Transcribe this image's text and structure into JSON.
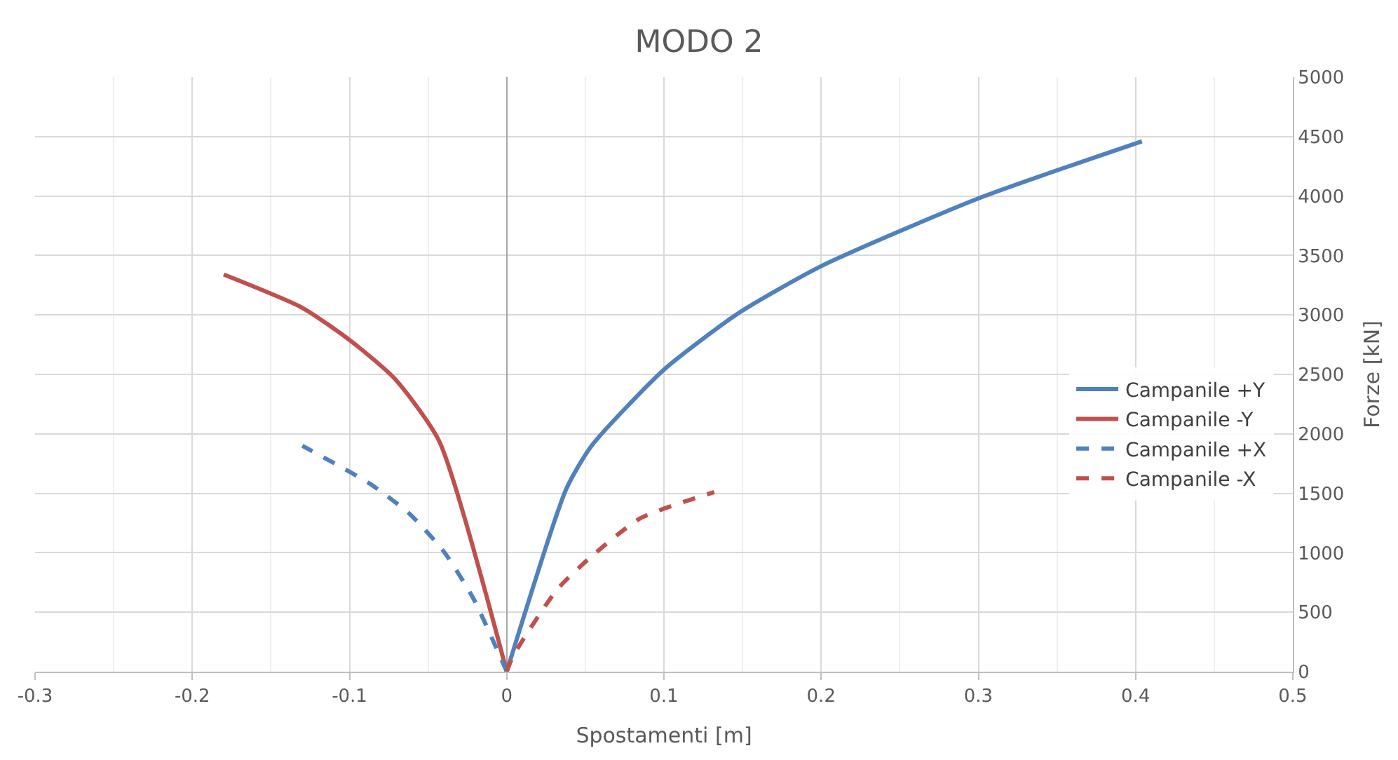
{
  "chart_data": {
    "type": "line",
    "title": "MODO 2",
    "xlabel": "Spostamenti [m]",
    "ylabel": "Forze [kN]",
    "xlim": [
      -0.3,
      0.5
    ],
    "xticks": [
      -0.3,
      -0.2,
      -0.1,
      0,
      0.1,
      0.2,
      0.3,
      0.4,
      0.5
    ],
    "ylim": [
      0,
      5000
    ],
    "yticks": [
      0,
      500,
      1000,
      1500,
      2000,
      2500,
      3000,
      3500,
      4000,
      4500,
      5000
    ],
    "grid": true,
    "legend": "right",
    "marker": "none",
    "series": [
      {
        "name": "Campanile +Y",
        "color": "#4f81bd",
        "line_style": "solid",
        "x": [
          0,
          0.038,
          0.054,
          0.1,
          0.148,
          0.2,
          0.3,
          0.404
        ],
        "values": [
          0,
          1540,
          1900,
          2540,
          3020,
          3410,
          3980,
          4460
        ]
      },
      {
        "name": "Campanile -Y",
        "color": "#c0504d",
        "line_style": "solid",
        "x": [
          0,
          -0.043,
          -0.071,
          -0.099,
          -0.13,
          -0.18
        ],
        "values": [
          0,
          1940,
          2460,
          2780,
          3060,
          3340
        ]
      },
      {
        "name": "Campanile +X",
        "color": "#4f81bd",
        "line_style": "dashed",
        "x": [
          0,
          -0.021,
          -0.04,
          -0.062,
          -0.087,
          -0.13
        ],
        "values": [
          0,
          610,
          1010,
          1330,
          1580,
          1900
        ]
      },
      {
        "name": "Campanile -X",
        "color": "#c0504d",
        "line_style": "dashed",
        "x": [
          0,
          0.004,
          0.032,
          0.054,
          0.085,
          0.132
        ],
        "values": [
          0,
          130,
          690,
          970,
          1290,
          1510
        ]
      }
    ]
  }
}
